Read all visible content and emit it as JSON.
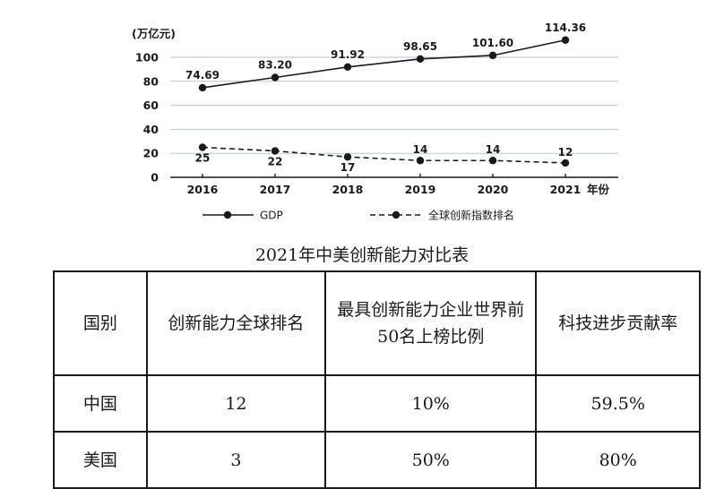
{
  "chart_data": {
    "type": "line",
    "y_unit": "(万亿元)",
    "x_axis_suffix": "年份",
    "x": [
      "2016",
      "2017",
      "2018",
      "2019",
      "2020",
      "2021"
    ],
    "y_ticks": [
      "0",
      "20",
      "40",
      "60",
      "80",
      "100"
    ],
    "ylim": [
      0,
      110
    ],
    "grid": true,
    "legend_position": "bottom",
    "series": [
      {
        "name": "GDP",
        "style": "solid",
        "values": [
          74.69,
          83.2,
          91.92,
          98.65,
          101.6,
          114.36
        ],
        "labels": [
          "74.69",
          "83.20",
          "91.92",
          "98.65",
          "101.60",
          "114.36"
        ]
      },
      {
        "name": "全球创新指数排名",
        "style": "dashed",
        "values": [
          25,
          22,
          17,
          14,
          14,
          12
        ],
        "labels": [
          "25",
          "22",
          "17",
          "14",
          "14",
          "12"
        ]
      }
    ],
    "colors": {
      "line": "#1a1a1a",
      "grid": "#b8c6d8"
    }
  },
  "table": {
    "title": "2021年中美创新能力对比表",
    "headers": [
      "国别",
      "创新能力全球排名",
      "最具创新能力企业世界前50名上榜比例",
      "科技进步贡献率"
    ],
    "rows": [
      [
        "中国",
        "12",
        "10%",
        "59.5%"
      ],
      [
        "美国",
        "3",
        "50%",
        "80%"
      ]
    ]
  }
}
